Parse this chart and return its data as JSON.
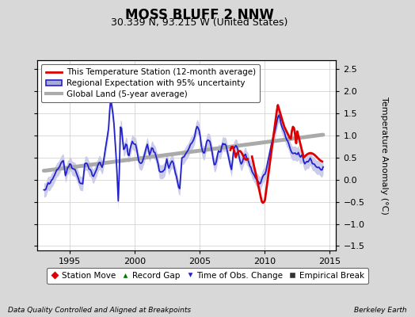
{
  "title": "MOSS BLUFF 2 NNW",
  "subtitle": "30.339 N, 93.215 W (United States)",
  "ylabel": "Temperature Anomaly (°C)",
  "xlabel_left": "Data Quality Controlled and Aligned at Breakpoints",
  "xlabel_right": "Berkeley Earth",
  "xlim": [
    1992.5,
    2015.5
  ],
  "ylim": [
    -1.6,
    2.7
  ],
  "yticks": [
    -1.5,
    -1.0,
    -0.5,
    0.0,
    0.5,
    1.0,
    1.5,
    2.0,
    2.5
  ],
  "xticks": [
    1995,
    2000,
    2005,
    2010,
    2015
  ],
  "bg_color": "#d8d8d8",
  "plot_bg_color": "#ffffff",
  "red_line_color": "#dd0000",
  "blue_line_color": "#2222cc",
  "blue_fill_color": "#aaaadd",
  "gray_line_color": "#aaaaaa",
  "title_fontsize": 12,
  "subtitle_fontsize": 9,
  "tick_fontsize": 8,
  "legend_fontsize": 7.5,
  "ylabel_fontsize": 8
}
